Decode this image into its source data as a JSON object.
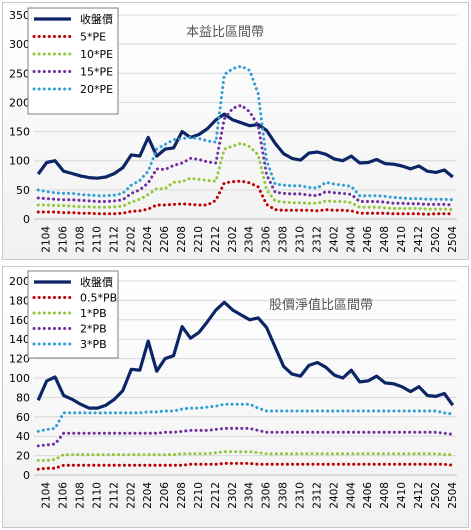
{
  "chart_data": [
    {
      "type": "line",
      "title": "本益比區間帶",
      "xlabel": "",
      "ylabel": "",
      "ylim": [
        0,
        350
      ],
      "yticks": [
        0,
        50,
        100,
        150,
        200,
        250,
        300,
        350
      ],
      "x_labels": [
        "2104",
        "2106",
        "2108",
        "2110",
        "2112",
        "2202",
        "2204",
        "2206",
        "2208",
        "2210",
        "2212",
        "2302",
        "2304",
        "2306",
        "2308",
        "2310",
        "2312",
        "2402",
        "2404",
        "2406",
        "2408",
        "2410",
        "2412",
        "2502",
        "2504"
      ],
      "x_count": 50,
      "grid": true,
      "legend_position": "top-left",
      "series": [
        {
          "name": "收盤價",
          "color": "#0b2566",
          "dashed": false,
          "values": [
            77,
            97,
            100,
            82,
            78,
            74,
            71,
            70,
            72,
            78,
            88,
            110,
            108,
            140,
            108,
            120,
            122,
            150,
            140,
            145,
            155,
            170,
            180,
            170,
            165,
            160,
            162,
            152,
            130,
            112,
            104,
            101,
            113,
            115,
            111,
            103,
            100,
            108,
            96,
            97,
            102,
            95,
            94,
            91,
            86,
            91,
            82,
            80,
            84,
            72
          ]
        },
        {
          "name": "5*PE",
          "color": "#c00000",
          "dashed": true,
          "values": [
            12,
            12,
            12,
            11,
            11,
            10,
            10,
            9,
            9,
            9,
            10,
            13,
            14,
            17,
            24,
            24,
            25,
            26,
            25,
            24,
            24,
            32,
            62,
            64,
            65,
            62,
            55,
            25,
            16,
            15,
            15,
            15,
            15,
            14,
            16,
            15,
            15,
            14,
            10,
            10,
            10,
            10,
            9,
            9,
            9,
            9,
            8,
            9,
            9,
            9
          ]
        },
        {
          "name": "10*PE",
          "color": "#92c83c",
          "dashed": true,
          "values": [
            24,
            24,
            23,
            23,
            22,
            21,
            21,
            20,
            20,
            21,
            22,
            29,
            34,
            42,
            52,
            52,
            63,
            64,
            70,
            68,
            66,
            65,
            120,
            125,
            130,
            124,
            110,
            50,
            31,
            29,
            28,
            28,
            27,
            27,
            31,
            30,
            30,
            28,
            20,
            20,
            20,
            19,
            18,
            18,
            18,
            18,
            17,
            17,
            17,
            16
          ]
        },
        {
          "name": "15*PE",
          "color": "#7030a0",
          "dashed": true,
          "values": [
            36,
            35,
            34,
            33,
            33,
            32,
            31,
            30,
            30,
            31,
            33,
            44,
            50,
            62,
            86,
            85,
            92,
            96,
            104,
            102,
            98,
            96,
            172,
            190,
            195,
            184,
            160,
            76,
            46,
            44,
            43,
            43,
            41,
            40,
            47,
            45,
            44,
            42,
            30,
            30,
            30,
            29,
            27,
            27,
            26,
            26,
            25,
            25,
            25,
            24
          ]
        },
        {
          "name": "20*PE",
          "color": "#2f9fd4",
          "dashed": true,
          "values": [
            50,
            47,
            45,
            44,
            44,
            42,
            41,
            40,
            40,
            41,
            44,
            58,
            66,
            82,
            120,
            128,
            136,
            138,
            140,
            138,
            134,
            132,
            248,
            258,
            262,
            255,
            215,
            100,
            60,
            58,
            57,
            57,
            54,
            53,
            63,
            60,
            58,
            56,
            40,
            40,
            40,
            39,
            37,
            36,
            35,
            35,
            34,
            34,
            34,
            33
          ]
        }
      ]
    },
    {
      "type": "line",
      "title": "股價淨值比區間帶",
      "xlabel": "",
      "ylabel": "",
      "ylim": [
        0,
        200
      ],
      "yticks": [
        0,
        20,
        40,
        60,
        80,
        100,
        120,
        140,
        160,
        180,
        200
      ],
      "x_labels": [
        "2104",
        "2106",
        "2108",
        "2110",
        "2112",
        "2202",
        "2204",
        "2206",
        "2208",
        "2210",
        "2212",
        "2302",
        "2304",
        "2306",
        "2308",
        "2310",
        "2312",
        "2402",
        "2404",
        "2406",
        "2408",
        "2410",
        "2412",
        "2502",
        "2504"
      ],
      "x_count": 50,
      "grid": true,
      "legend_position": "top-left",
      "series": [
        {
          "name": "收盤價",
          "color": "#0b2566",
          "dashed": false,
          "values": [
            77,
            97,
            101,
            82,
            78,
            73,
            69,
            69,
            72,
            78,
            87,
            109,
            108,
            138,
            107,
            120,
            123,
            153,
            141,
            147,
            158,
            170,
            178,
            170,
            165,
            160,
            162,
            152,
            132,
            112,
            104,
            102,
            113,
            116,
            111,
            103,
            100,
            108,
            96,
            97,
            102,
            95,
            94,
            91,
            86,
            91,
            82,
            81,
            84,
            72
          ]
        },
        {
          "name": "0.5*PB",
          "color": "#c00000",
          "dashed": true,
          "values": [
            6,
            7,
            7,
            10,
            10,
            10,
            10,
            10,
            10,
            10,
            10,
            10,
            10,
            10,
            10,
            10,
            10,
            10,
            11,
            11,
            11,
            11,
            12,
            12,
            12,
            12,
            11,
            11,
            11,
            11,
            11,
            11,
            11,
            11,
            11,
            11,
            11,
            11,
            11,
            11,
            11,
            11,
            11,
            11,
            11,
            11,
            11,
            11,
            11,
            10
          ]
        },
        {
          "name": "1*PB",
          "color": "#92c83c",
          "dashed": true,
          "values": [
            15,
            15,
            16,
            21,
            21,
            21,
            21,
            21,
            21,
            21,
            21,
            21,
            21,
            21,
            21,
            21,
            21,
            22,
            22,
            22,
            22,
            23,
            24,
            24,
            24,
            24,
            23,
            22,
            22,
            22,
            22,
            22,
            22,
            22,
            22,
            22,
            22,
            22,
            22,
            22,
            22,
            22,
            22,
            22,
            22,
            22,
            22,
            22,
            21,
            21
          ]
        },
        {
          "name": "2*PB",
          "color": "#7030a0",
          "dashed": true,
          "values": [
            30,
            31,
            32,
            43,
            43,
            43,
            43,
            43,
            43,
            43,
            43,
            43,
            43,
            43,
            43,
            44,
            44,
            45,
            46,
            46,
            46,
            47,
            48,
            48,
            48,
            48,
            46,
            44,
            44,
            44,
            44,
            44,
            44,
            44,
            44,
            44,
            44,
            44,
            44,
            44,
            44,
            44,
            44,
            44,
            44,
            44,
            44,
            44,
            43,
            42
          ]
        },
        {
          "name": "3*PB",
          "color": "#2f9fd4",
          "dashed": true,
          "values": [
            45,
            47,
            48,
            64,
            64,
            64,
            64,
            64,
            64,
            64,
            64,
            64,
            64,
            65,
            65,
            66,
            66,
            68,
            69,
            69,
            70,
            71,
            73,
            73,
            73,
            73,
            69,
            66,
            66,
            66,
            66,
            66,
            66,
            66,
            66,
            66,
            66,
            66,
            66,
            66,
            66,
            66,
            66,
            66,
            66,
            66,
            66,
            66,
            64,
            63
          ]
        }
      ]
    }
  ]
}
